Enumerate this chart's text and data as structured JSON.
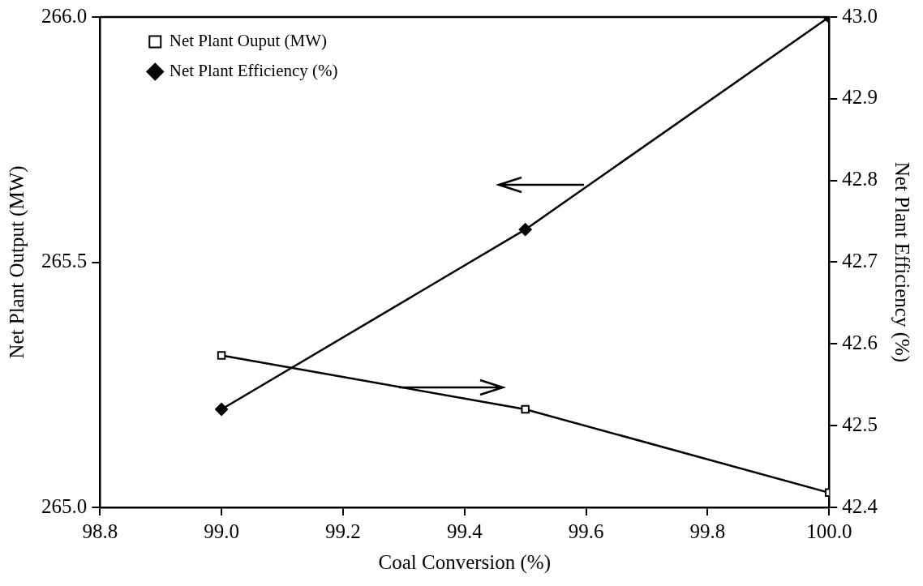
{
  "chart_data": {
    "type": "line",
    "xlabel": "Coal Conversion (%)",
    "ylabel": "Net Plant Output (MW)",
    "y2label": "Net Plant Efficiency (%)",
    "x": [
      99.0,
      99.5,
      100.0
    ],
    "xlim": [
      98.8,
      100.0
    ],
    "xticks": [
      {
        "value": 98.8,
        "label": "98.8"
      },
      {
        "value": 99.0,
        "label": "99.0"
      },
      {
        "value": 99.2,
        "label": "99.2"
      },
      {
        "value": 99.4,
        "label": "99.4"
      },
      {
        "value": 99.6,
        "label": "99.6"
      },
      {
        "value": 99.8,
        "label": "99.8"
      },
      {
        "value": 100.0,
        "label": "100.0"
      }
    ],
    "ylim": [
      265.0,
      266.0
    ],
    "yticks": [
      {
        "value": 265.0,
        "label": "265.0"
      },
      {
        "value": 265.5,
        "label": "265.5"
      },
      {
        "value": 266.0,
        "label": "266.0"
      }
    ],
    "y2lim": [
      42.4,
      43.0
    ],
    "y2ticks": [
      {
        "value": 42.4,
        "label": "42.4"
      },
      {
        "value": 42.5,
        "label": "42.5"
      },
      {
        "value": 42.6,
        "label": "42.6"
      },
      {
        "value": 42.7,
        "label": "42.7"
      },
      {
        "value": 42.8,
        "label": "42.8"
      },
      {
        "value": 42.9,
        "label": "42.9"
      },
      {
        "value": 43.0,
        "label": "43.0"
      }
    ],
    "series": [
      {
        "name": "Net Plant Ouput (MW)",
        "color": "#000000",
        "marker": "square",
        "values": [
          265.31,
          265.2,
          265.03
        ]
      },
      {
        "name": "Net Plant Efficiency (%)",
        "color": "#000000",
        "marker": "diamond",
        "axis": "y2",
        "values": [
          42.52,
          42.74,
          43.0
        ]
      }
    ],
    "grid": false,
    "legend": "top left",
    "line_style": "solid"
  }
}
